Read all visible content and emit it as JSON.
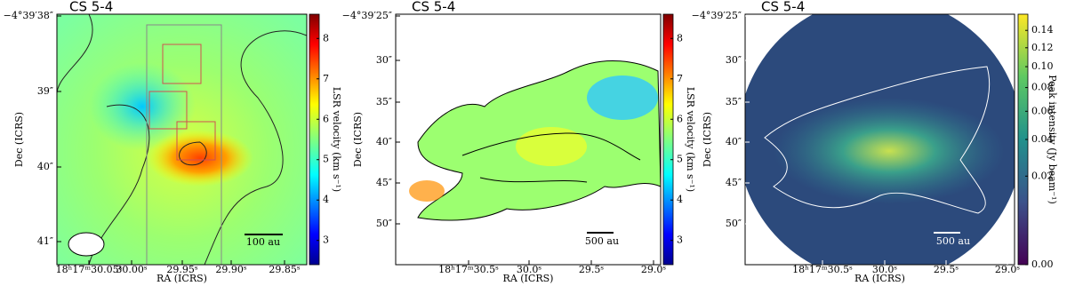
{
  "panels": [
    {
      "title": "CS 5-4",
      "xlabel": "RA (ICRS)",
      "ylabel": "Dec (ICRS)",
      "xticks": [
        "18ʰ17ᵐ30.05ˢ",
        "30.00ˢ",
        "29.95ˢ",
        "29.90ˢ",
        "29.85ˢ"
      ],
      "yticks": [
        "−4°39′38″",
        "39″",
        "40″",
        "41″"
      ],
      "scalebar": "100 au",
      "colorbar": {
        "label": "LSR velocity (km s⁻¹)",
        "lim": [
          2.4,
          8.6
        ],
        "ticks": [
          3,
          4,
          5,
          6,
          7,
          8
        ],
        "colormap": "jet"
      }
    },
    {
      "title": "CS 5-4",
      "xlabel": "RA (ICRS)",
      "ylabel": "Dec (ICRS)",
      "xticks": [
        "18ʰ17ᵐ30.5ˢ",
        "30.0ˢ",
        "29.5ˢ",
        "29.0ˢ"
      ],
      "yticks": [
        "−4°39′25″",
        "30″",
        "35″",
        "40″",
        "45″",
        "50″"
      ],
      "scalebar": "500 au",
      "colorbar": {
        "label": "LSR velocity (km s⁻¹)",
        "lim": [
          2.4,
          8.6
        ],
        "ticks": [
          3,
          4,
          5,
          6,
          7,
          8
        ],
        "colormap": "jet"
      }
    },
    {
      "title": "CS 5-4",
      "xlabel": "RA (ICRS)",
      "ylabel": "Dec (ICRS)",
      "xticks": [
        "18ʰ17ᵐ30.5ˢ",
        "30.0ˢ",
        "29.5ˢ",
        "29.0ˢ"
      ],
      "yticks": [
        "−4°39′25″",
        "30″",
        "35″",
        "40″",
        "45″",
        "50″"
      ],
      "scalebar": "500 au",
      "colorbar": {
        "label": "Peak intensity (Jy beam⁻¹)",
        "lim": [
          0,
          0.16
        ],
        "scale": "sqrt",
        "colormap": "viridis",
        "ticks": [
          {
            "value": 0,
            "label": "0.00"
          },
          {
            "value": 0.02,
            "label": "0.02"
          },
          {
            "value": 0.04,
            "label": "0.04"
          },
          {
            "value": 0.06,
            "label": "0.06"
          },
          {
            "value": 0.08,
            "label": "0.08"
          },
          {
            "value": 0.1,
            "label": "0.10"
          },
          {
            "value": 0.12,
            "label": "0.12"
          },
          {
            "value": 0.14,
            "label": "0.14"
          }
        ]
      }
    }
  ]
}
